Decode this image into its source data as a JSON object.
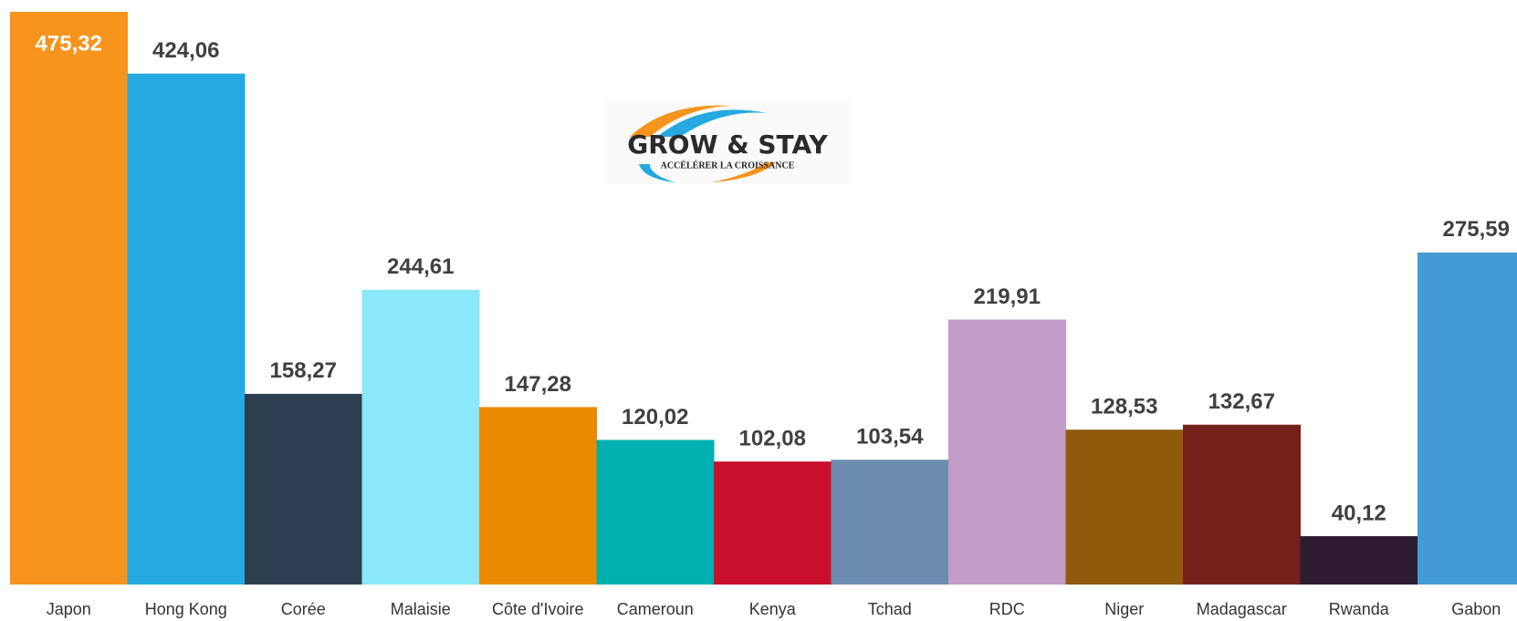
{
  "chart_data": {
    "type": "bar",
    "categories": [
      "Japon",
      "Hong Kong",
      "Corée",
      "Malaisie",
      "Côte d'Ivoire",
      "Cameroun",
      "Kenya",
      "Tchad",
      "RDC",
      "Niger",
      "Madagascar",
      "Rwanda",
      "Gabon"
    ],
    "values": [
      475.32,
      424.06,
      158.27,
      244.61,
      147.28,
      120.02,
      102.08,
      103.54,
      219.91,
      128.53,
      132.67,
      40.12,
      275.59
    ],
    "value_labels": [
      "475,32",
      "424,06",
      "158,27",
      "244,61",
      "147,28",
      "120,02",
      "102,08",
      "103,54",
      "219,91",
      "128,53",
      "132,67",
      "40,12",
      "275,59"
    ],
    "colors": [
      "#f7941d",
      "#25a9e0",
      "#2c3e50",
      "#8ae8fa",
      "#e98a00",
      "#00b0b0",
      "#c8102e",
      "#6b8cae",
      "#c39bc8",
      "#8f5a0a",
      "#74201b",
      "#2d1b30",
      "#439bd6"
    ]
  },
  "logo": {
    "title": "GROW & STAY",
    "subtitle": "ACCÉLÉRER LA CROISSANCE"
  }
}
